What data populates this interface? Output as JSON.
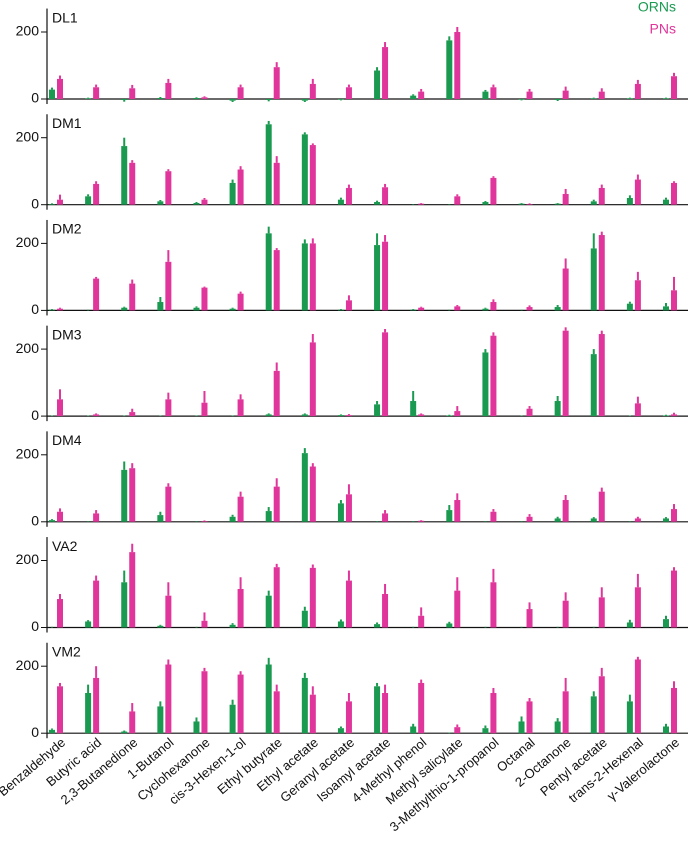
{
  "chart_data": [
    {
      "type": "bar",
      "title": "DL1",
      "ylim": [
        -15,
        270
      ],
      "yticks": [
        0,
        200
      ],
      "series": [
        {
          "name": "ORNs",
          "color": "#1a9a50",
          "values": [
            28,
            2,
            -3,
            3,
            3,
            -5,
            -3,
            -5,
            -2,
            85,
            10,
            175,
            22,
            -2,
            -3,
            2,
            2,
            2
          ],
          "errors": [
            6,
            2,
            5,
            3,
            2,
            4,
            4,
            4,
            2,
            10,
            4,
            12,
            5,
            2,
            3,
            2,
            2,
            2
          ]
        },
        {
          "name": "PNs",
          "color": "#e0359a",
          "values": [
            60,
            35,
            32,
            48,
            5,
            35,
            95,
            45,
            35,
            155,
            22,
            200,
            35,
            22,
            25,
            22,
            45,
            68
          ],
          "errors": [
            10,
            8,
            10,
            12,
            3,
            8,
            15,
            15,
            8,
            15,
            8,
            15,
            8,
            8,
            12,
            10,
            12,
            10
          ]
        }
      ]
    },
    {
      "type": "bar",
      "title": "DM1",
      "ylim": [
        -15,
        270
      ],
      "yticks": [
        0,
        200
      ],
      "series": [
        {
          "color": "#1a9a50",
          "values": [
            2,
            25,
            175,
            10,
            5,
            65,
            240,
            210,
            15,
            8,
            0,
            0,
            8,
            3,
            3,
            10,
            20,
            15
          ],
          "errors": [
            2,
            6,
            25,
            4,
            3,
            10,
            10,
            6,
            6,
            4,
            2,
            2,
            3,
            2,
            2,
            5,
            8,
            6
          ]
        },
        {
          "color": "#e0359a",
          "values": [
            15,
            62,
            125,
            100,
            15,
            105,
            125,
            178,
            50,
            52,
            3,
            25,
            80,
            2,
            32,
            50,
            75,
            65
          ],
          "errors": [
            15,
            8,
            8,
            6,
            5,
            10,
            20,
            5,
            10,
            10,
            2,
            6,
            5,
            2,
            15,
            10,
            15,
            5
          ]
        }
      ]
    },
    {
      "type": "bar",
      "title": "DM2",
      "ylim": [
        -15,
        270
      ],
      "yticks": [
        0,
        200
      ],
      "series": [
        {
          "color": "#1a9a50",
          "values": [
            2,
            0,
            8,
            25,
            8,
            5,
            230,
            200,
            2,
            195,
            2,
            0,
            5,
            0,
            10,
            185,
            20,
            12
          ],
          "errors": [
            2,
            2,
            3,
            15,
            4,
            3,
            20,
            12,
            2,
            35,
            2,
            2,
            3,
            2,
            6,
            45,
            6,
            10
          ]
        },
        {
          "color": "#e0359a",
          "values": [
            5,
            95,
            80,
            145,
            68,
            50,
            180,
            200,
            30,
            205,
            8,
            12,
            25,
            10,
            125,
            225,
            90,
            60
          ],
          "errors": [
            3,
            5,
            12,
            35,
            3,
            6,
            6,
            15,
            15,
            20,
            3,
            4,
            8,
            5,
            30,
            10,
            25,
            40
          ]
        }
      ]
    },
    {
      "type": "bar",
      "title": "DM3",
      "ylim": [
        -15,
        270
      ],
      "yticks": [
        0,
        200
      ],
      "series": [
        {
          "color": "#1a9a50",
          "values": [
            0,
            0,
            0,
            0,
            0,
            0,
            5,
            5,
            3,
            35,
            45,
            2,
            190,
            0,
            45,
            185,
            0,
            2
          ],
          "errors": [
            2,
            2,
            2,
            2,
            2,
            2,
            3,
            3,
            2,
            10,
            30,
            2,
            10,
            2,
            15,
            15,
            2,
            2
          ]
        },
        {
          "color": "#e0359a",
          "values": [
            50,
            5,
            12,
            50,
            40,
            50,
            135,
            220,
            3,
            250,
            5,
            15,
            240,
            22,
            255,
            245,
            38,
            5
          ],
          "errors": [
            30,
            3,
            10,
            20,
            35,
            15,
            25,
            25,
            3,
            10,
            3,
            15,
            10,
            8,
            10,
            10,
            20,
            5
          ]
        }
      ]
    },
    {
      "type": "bar",
      "title": "DM4",
      "ylim": [
        -15,
        270
      ],
      "yticks": [
        0,
        200
      ],
      "series": [
        {
          "color": "#1a9a50",
          "values": [
            5,
            0,
            155,
            20,
            0,
            15,
            32,
            205,
            55,
            0,
            0,
            35,
            0,
            0,
            10,
            10,
            0,
            10
          ],
          "errors": [
            3,
            2,
            25,
            10,
            2,
            6,
            12,
            15,
            10,
            2,
            2,
            15,
            2,
            2,
            5,
            4,
            2,
            4
          ]
        },
        {
          "color": "#e0359a",
          "values": [
            30,
            25,
            160,
            105,
            2,
            75,
            105,
            165,
            82,
            25,
            3,
            65,
            30,
            15,
            65,
            90,
            10,
            38
          ],
          "errors": [
            10,
            10,
            15,
            10,
            2,
            15,
            25,
            10,
            30,
            10,
            2,
            20,
            8,
            8,
            15,
            12,
            5,
            15
          ]
        }
      ]
    },
    {
      "type": "bar",
      "title": "VA2",
      "ylim": [
        -15,
        270
      ],
      "yticks": [
        0,
        200
      ],
      "series": [
        {
          "color": "#1a9a50",
          "values": [
            0,
            18,
            135,
            5,
            0,
            8,
            95,
            50,
            18,
            10,
            0,
            12,
            0,
            0,
            0,
            0,
            15,
            25
          ],
          "errors": [
            2,
            4,
            35,
            3,
            2,
            5,
            15,
            12,
            6,
            5,
            2,
            5,
            2,
            2,
            2,
            2,
            8,
            10
          ]
        },
        {
          "color": "#e0359a",
          "values": [
            85,
            140,
            225,
            95,
            20,
            115,
            180,
            178,
            140,
            100,
            35,
            110,
            135,
            55,
            80,
            90,
            120,
            170
          ],
          "errors": [
            15,
            15,
            25,
            40,
            25,
            35,
            10,
            10,
            30,
            30,
            25,
            40,
            40,
            20,
            25,
            30,
            40,
            10
          ]
        }
      ]
    },
    {
      "type": "bar",
      "title": "VM2",
      "ylim": [
        -15,
        270
      ],
      "yticks": [
        0,
        200
      ],
      "categories": [
        "Benzaldehyde",
        "Butyric acid",
        "2,3-Butanedione",
        "1-Butanol",
        "Cyclohexanone",
        "cis-3-Hexen-1-ol",
        "Ethyl butyrate",
        "Ethyl acetate",
        "Geranyl acetate",
        "Isoamyl acetate",
        "4-Methyl phenol",
        "Methyl salicylate",
        "3-Methylthio-1-propanol",
        "Octanal",
        "2-Octanone",
        "Pentyl acetate",
        "trans-2-Hexenal",
        "γ-Valerolactone"
      ],
      "series": [
        {
          "color": "#1a9a50",
          "values": [
            10,
            120,
            5,
            80,
            35,
            85,
            205,
            165,
            15,
            140,
            20,
            0,
            15,
            35,
            35,
            110,
            95,
            20
          ],
          "errors": [
            4,
            25,
            3,
            15,
            12,
            15,
            20,
            15,
            5,
            10,
            8,
            2,
            8,
            15,
            10,
            15,
            20,
            8
          ]
        },
        {
          "color": "#e0359a",
          "values": [
            140,
            165,
            65,
            205,
            185,
            175,
            125,
            115,
            95,
            120,
            150,
            18,
            120,
            95,
            125,
            170,
            220,
            135
          ],
          "errors": [
            10,
            35,
            25,
            15,
            10,
            10,
            20,
            25,
            25,
            25,
            10,
            8,
            15,
            10,
            40,
            25,
            8,
            20
          ]
        }
      ]
    }
  ]
}
